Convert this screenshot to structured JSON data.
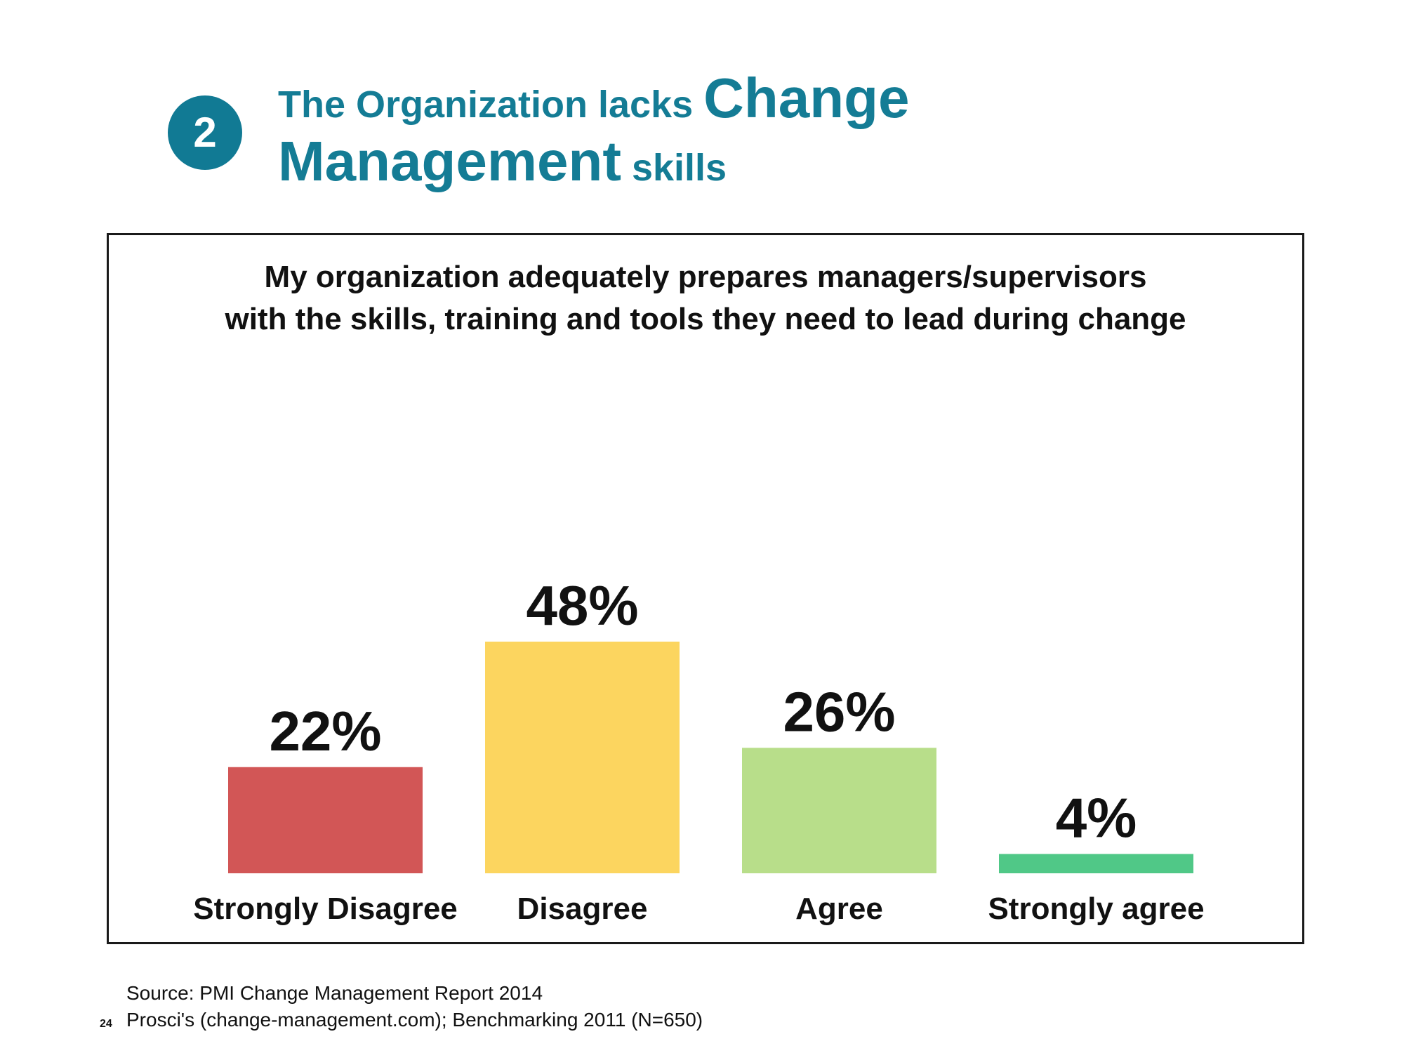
{
  "header": {
    "badge_number": "2",
    "title_part1": "The Organization lacks ",
    "title_part2": "Change",
    "title_part3": "Management",
    "title_part4": " skills"
  },
  "chart_data": {
    "type": "bar",
    "title_line1": "My organization adequately prepares managers/supervisors",
    "title_line2": "with the skills, training and tools they need to lead during change",
    "categories": [
      "Strongly Disagree",
      "Disagree",
      "Agree",
      "Strongly agree"
    ],
    "values": [
      22,
      48,
      26,
      4
    ],
    "data_labels": [
      "22%",
      "48%",
      "26%",
      "4%"
    ],
    "colors": [
      "#d25656",
      "#fcd55f",
      "#b8de8a",
      "#50c887"
    ],
    "unit": "%",
    "ylim": [
      0,
      48
    ],
    "grid": false,
    "legend": "none"
  },
  "footer": {
    "source_line1": "Source: PMI Change Management Report 2014",
    "source_line2": "Prosci's (change-management.com); Benchmarking 2011 (N=650)",
    "page_number": "24"
  }
}
